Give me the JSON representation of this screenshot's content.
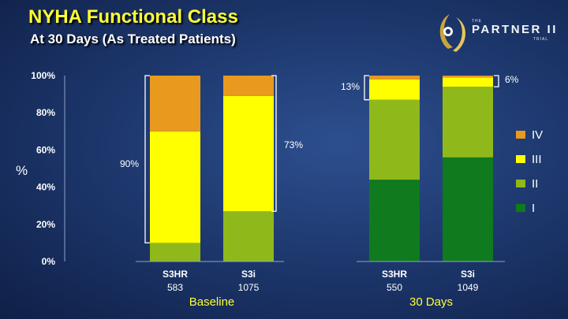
{
  "header": {
    "title": "NYHA Functional Class",
    "subtitle": "At 30 Days (As Treated Patients)"
  },
  "logo": {
    "small_top": "THE",
    "main": "PARTNER II",
    "small_bottom": "TRIAL"
  },
  "colors": {
    "IV": "#e89a1e",
    "III": "#ffff00",
    "II": "#8fb81a",
    "I": "#0f7a1e"
  },
  "chart_data": {
    "type": "bar",
    "stacked": true,
    "ylabel": "%",
    "ylim": [
      0,
      100
    ],
    "yticks": [
      "0%",
      "20%",
      "40%",
      "60%",
      "80%",
      "100%"
    ],
    "categories": [
      "S3HR",
      "S3i",
      "S3HR",
      "S3i"
    ],
    "category_n": [
      "583",
      "1075",
      "550",
      "1049"
    ],
    "groups": [
      {
        "label": "Baseline",
        "categories": [
          0,
          1
        ]
      },
      {
        "label": "30 Days",
        "categories": [
          2,
          3
        ]
      }
    ],
    "series": [
      {
        "name": "I",
        "values": [
          0,
          0,
          44,
          56
        ]
      },
      {
        "name": "II",
        "values": [
          10,
          27,
          43,
          38
        ]
      },
      {
        "name": "III",
        "values": [
          60,
          62,
          11,
          5
        ]
      },
      {
        "name": "IV",
        "values": [
          30,
          11,
          2,
          1
        ]
      }
    ],
    "legend_order": [
      "IV",
      "III",
      "II",
      "I"
    ],
    "legend_position": "right",
    "annotations": [
      "90%",
      "73%",
      "13%",
      "6%"
    ]
  }
}
